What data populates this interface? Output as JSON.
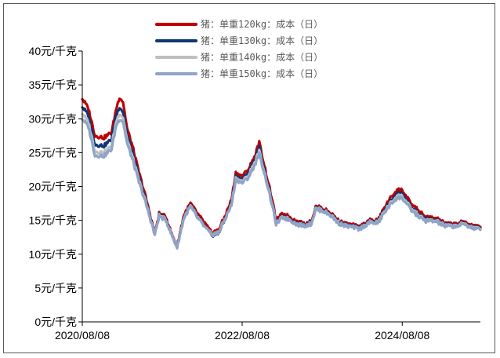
{
  "chart_data": {
    "type": "line",
    "title": "",
    "xlabel": "",
    "ylabel": "",
    "ylim": [
      0,
      40
    ],
    "x_range": [
      "2020-08-08",
      "2025-07-31"
    ],
    "y_ticks": [
      0,
      5,
      10,
      15,
      20,
      25,
      30,
      35,
      40
    ],
    "y_tick_labels": [
      "0元/千克",
      "5元/千克",
      "10元/千克",
      "15元/千克",
      "20元/千克",
      "25元/千克",
      "30元/千克",
      "35元/千克",
      "40元/千克"
    ],
    "x_ticks": [
      "2020-08-08",
      "2022-08-08",
      "2024-08-08"
    ],
    "x_tick_labels": [
      "2020/08/08",
      "2022/08/08",
      "2024/08/08"
    ],
    "grid": false,
    "legend_position": "top-center",
    "series": [
      {
        "name": "猪：单重120kg：成本（日）",
        "color": "#c00000",
        "points": [
          [
            "2020-08-08",
            33.0
          ],
          [
            "2020-09-05",
            31.5
          ],
          [
            "2020-10-05",
            27.5
          ],
          [
            "2020-11-15",
            27.2
          ],
          [
            "2020-12-20",
            28.0
          ],
          [
            "2021-01-10",
            31.5
          ],
          [
            "2021-01-25",
            33.2
          ],
          [
            "2021-02-10",
            32.5
          ],
          [
            "2021-03-01",
            28.5
          ],
          [
            "2021-03-25",
            26.0
          ],
          [
            "2021-04-20",
            22.5
          ],
          [
            "2021-05-20",
            19.0
          ],
          [
            "2021-06-20",
            15.0
          ],
          [
            "2021-07-05",
            13.0
          ],
          [
            "2021-07-25",
            16.0
          ],
          [
            "2021-08-25",
            15.5
          ],
          [
            "2021-09-20",
            13.0
          ],
          [
            "2021-10-15",
            11.2
          ],
          [
            "2021-11-15",
            15.8
          ],
          [
            "2021-12-15",
            17.5
          ],
          [
            "2022-01-15",
            16.0
          ],
          [
            "2022-02-20",
            14.5
          ],
          [
            "2022-03-20",
            13.2
          ],
          [
            "2022-04-20",
            13.5
          ],
          [
            "2022-05-20",
            15.5
          ],
          [
            "2022-06-20",
            18.0
          ],
          [
            "2022-07-10",
            22.0
          ],
          [
            "2022-08-08",
            21.5
          ],
          [
            "2022-09-05",
            22.5
          ],
          [
            "2022-10-05",
            24.5
          ],
          [
            "2022-10-25",
            26.5
          ],
          [
            "2022-11-25",
            22.0
          ],
          [
            "2022-12-20",
            18.5
          ],
          [
            "2023-01-10",
            15.0
          ],
          [
            "2023-02-10",
            16.0
          ],
          [
            "2023-03-15",
            15.5
          ],
          [
            "2023-04-15",
            14.8
          ],
          [
            "2023-05-20",
            14.5
          ],
          [
            "2023-06-20",
            14.8
          ],
          [
            "2023-07-10",
            17.0
          ],
          [
            "2023-08-10",
            16.8
          ],
          [
            "2023-09-20",
            16.0
          ],
          [
            "2023-10-20",
            15.0
          ],
          [
            "2023-11-20",
            14.5
          ],
          [
            "2023-12-25",
            14.3
          ],
          [
            "2024-01-25",
            14.0
          ],
          [
            "2024-03-10",
            15.0
          ],
          [
            "2024-04-20",
            15.0
          ],
          [
            "2024-05-20",
            17.0
          ],
          [
            "2024-06-20",
            18.5
          ],
          [
            "2024-07-15",
            19.5
          ],
          [
            "2024-08-08",
            19.5
          ],
          [
            "2024-09-15",
            17.5
          ],
          [
            "2024-10-20",
            16.5
          ],
          [
            "2024-11-20",
            15.5
          ],
          [
            "2025-01-10",
            15.3
          ],
          [
            "2025-02-20",
            14.5
          ],
          [
            "2025-04-10",
            14.5
          ],
          [
            "2025-05-20",
            14.8
          ],
          [
            "2025-06-20",
            14.3
          ],
          [
            "2025-07-31",
            14.0
          ]
        ]
      },
      {
        "name": "猪：单重130kg：成本（日）",
        "color": "#0f3674",
        "points": [
          [
            "2020-08-08",
            31.8
          ],
          [
            "2020-09-05",
            30.5
          ],
          [
            "2020-10-05",
            26.2
          ],
          [
            "2020-11-15",
            26.0
          ],
          [
            "2020-12-20",
            27.0
          ],
          [
            "2021-01-10",
            30.5
          ],
          [
            "2021-01-25",
            31.8
          ],
          [
            "2021-02-10",
            31.0
          ],
          [
            "2021-03-01",
            27.5
          ],
          [
            "2021-03-25",
            25.0
          ],
          [
            "2021-04-20",
            21.8
          ],
          [
            "2021-05-20",
            18.5
          ],
          [
            "2021-06-20",
            14.8
          ],
          [
            "2021-07-05",
            12.8
          ],
          [
            "2021-07-25",
            15.8
          ],
          [
            "2021-08-25",
            15.2
          ],
          [
            "2021-09-20",
            12.8
          ],
          [
            "2021-10-15",
            11.0
          ],
          [
            "2021-11-15",
            15.5
          ],
          [
            "2021-12-15",
            17.2
          ],
          [
            "2022-01-15",
            15.6
          ],
          [
            "2022-02-20",
            14.0
          ],
          [
            "2022-03-20",
            12.8
          ],
          [
            "2022-04-20",
            13.0
          ],
          [
            "2022-05-20",
            15.0
          ],
          [
            "2022-06-20",
            17.5
          ],
          [
            "2022-07-10",
            21.5
          ],
          [
            "2022-08-08",
            21.0
          ],
          [
            "2022-09-05",
            22.0
          ],
          [
            "2022-10-05",
            24.0
          ],
          [
            "2022-10-25",
            25.8
          ],
          [
            "2022-11-25",
            21.5
          ],
          [
            "2022-12-20",
            18.0
          ],
          [
            "2023-01-10",
            14.6
          ],
          [
            "2023-02-10",
            15.6
          ],
          [
            "2023-03-15",
            15.2
          ],
          [
            "2023-04-15",
            14.5
          ],
          [
            "2023-05-20",
            14.3
          ],
          [
            "2023-06-20",
            14.6
          ],
          [
            "2023-07-10",
            16.8
          ],
          [
            "2023-08-10",
            16.6
          ],
          [
            "2023-09-20",
            15.8
          ],
          [
            "2023-10-20",
            14.8
          ],
          [
            "2023-11-20",
            14.3
          ],
          [
            "2023-12-25",
            14.1
          ],
          [
            "2024-01-25",
            13.8
          ],
          [
            "2024-03-10",
            14.8
          ],
          [
            "2024-04-20",
            14.8
          ],
          [
            "2024-05-20",
            16.6
          ],
          [
            "2024-06-20",
            18.0
          ],
          [
            "2024-07-15",
            19.0
          ],
          [
            "2024-08-08",
            19.0
          ],
          [
            "2024-09-15",
            17.0
          ],
          [
            "2024-10-20",
            16.0
          ],
          [
            "2024-11-20",
            15.2
          ],
          [
            "2025-01-10",
            15.0
          ],
          [
            "2025-02-20",
            14.3
          ],
          [
            "2025-04-10",
            14.3
          ],
          [
            "2025-05-20",
            14.6
          ],
          [
            "2025-06-20",
            14.1
          ],
          [
            "2025-07-31",
            13.8
          ]
        ]
      },
      {
        "name": "猪：单重140kg：成本（日）",
        "color": "#bfbfbf",
        "points": [
          [
            "2020-08-08",
            30.8
          ],
          [
            "2020-09-05",
            29.5
          ],
          [
            "2020-10-05",
            25.2
          ],
          [
            "2020-11-15",
            25.0
          ],
          [
            "2020-12-20",
            26.0
          ],
          [
            "2021-01-10",
            29.6
          ],
          [
            "2021-01-25",
            30.8
          ],
          [
            "2021-02-10",
            30.2
          ],
          [
            "2021-03-01",
            26.8
          ],
          [
            "2021-03-25",
            24.4
          ],
          [
            "2021-04-20",
            21.3
          ],
          [
            "2021-05-20",
            18.2
          ],
          [
            "2021-06-20",
            14.7
          ],
          [
            "2021-07-05",
            12.8
          ],
          [
            "2021-07-25",
            15.7
          ],
          [
            "2021-08-25",
            15.1
          ],
          [
            "2021-09-20",
            12.8
          ],
          [
            "2021-10-15",
            11.0
          ],
          [
            "2021-11-15",
            15.4
          ],
          [
            "2021-12-15",
            17.1
          ],
          [
            "2022-01-15",
            15.5
          ],
          [
            "2022-02-20",
            13.9
          ],
          [
            "2022-03-20",
            12.9
          ],
          [
            "2022-04-20",
            13.1
          ],
          [
            "2022-05-20",
            15.1
          ],
          [
            "2022-06-20",
            17.3
          ],
          [
            "2022-07-10",
            21.2
          ],
          [
            "2022-08-08",
            20.7
          ],
          [
            "2022-09-05",
            21.6
          ],
          [
            "2022-10-05",
            23.6
          ],
          [
            "2022-10-25",
            25.2
          ],
          [
            "2022-11-25",
            21.2
          ],
          [
            "2022-12-20",
            17.8
          ],
          [
            "2023-01-10",
            14.5
          ],
          [
            "2023-02-10",
            15.5
          ],
          [
            "2023-03-15",
            15.1
          ],
          [
            "2023-04-15",
            14.4
          ],
          [
            "2023-05-20",
            14.2
          ],
          [
            "2023-06-20",
            14.5
          ],
          [
            "2023-07-10",
            16.7
          ],
          [
            "2023-08-10",
            16.5
          ],
          [
            "2023-09-20",
            15.7
          ],
          [
            "2023-10-20",
            14.7
          ],
          [
            "2023-11-20",
            14.2
          ],
          [
            "2023-12-25",
            14.0
          ],
          [
            "2024-01-25",
            13.7
          ],
          [
            "2024-03-10",
            14.7
          ],
          [
            "2024-04-20",
            14.7
          ],
          [
            "2024-05-20",
            16.4
          ],
          [
            "2024-06-20",
            17.7
          ],
          [
            "2024-07-15",
            18.6
          ],
          [
            "2024-08-08",
            18.6
          ],
          [
            "2024-09-15",
            16.8
          ],
          [
            "2024-10-20",
            15.8
          ],
          [
            "2024-11-20",
            15.0
          ],
          [
            "2025-01-10",
            14.9
          ],
          [
            "2025-02-20",
            14.2
          ],
          [
            "2025-04-10",
            14.2
          ],
          [
            "2025-05-20",
            14.5
          ],
          [
            "2025-06-20",
            14.0
          ],
          [
            "2025-07-31",
            13.7
          ]
        ]
      },
      {
        "name": "猪：单重150kg：成本（日）",
        "color": "#8ea4c8",
        "points": [
          [
            "2020-08-08",
            30.0
          ],
          [
            "2020-09-05",
            28.8
          ],
          [
            "2020-10-05",
            24.6
          ],
          [
            "2020-11-15",
            24.5
          ],
          [
            "2020-12-20",
            25.5
          ],
          [
            "2021-01-10",
            29.0
          ],
          [
            "2021-01-25",
            30.0
          ],
          [
            "2021-02-10",
            29.6
          ],
          [
            "2021-03-01",
            26.3
          ],
          [
            "2021-03-25",
            24.0
          ],
          [
            "2021-04-20",
            21.0
          ],
          [
            "2021-05-20",
            18.0
          ],
          [
            "2021-06-20",
            14.6
          ],
          [
            "2021-07-05",
            12.9
          ],
          [
            "2021-07-25",
            15.6
          ],
          [
            "2021-08-25",
            15.0
          ],
          [
            "2021-09-20",
            12.9
          ],
          [
            "2021-10-15",
            11.1
          ],
          [
            "2021-11-15",
            15.3
          ],
          [
            "2021-12-15",
            17.0
          ],
          [
            "2022-01-15",
            15.4
          ],
          [
            "2022-02-20",
            13.9
          ],
          [
            "2022-03-20",
            13.0
          ],
          [
            "2022-04-20",
            13.2
          ],
          [
            "2022-05-20",
            15.1
          ],
          [
            "2022-06-20",
            17.2
          ],
          [
            "2022-07-10",
            21.0
          ],
          [
            "2022-08-08",
            20.5
          ],
          [
            "2022-09-05",
            21.3
          ],
          [
            "2022-10-05",
            23.2
          ],
          [
            "2022-10-25",
            24.8
          ],
          [
            "2022-11-25",
            21.0
          ],
          [
            "2022-12-20",
            17.6
          ],
          [
            "2023-01-10",
            14.5
          ],
          [
            "2023-02-10",
            15.4
          ],
          [
            "2023-03-15",
            15.0
          ],
          [
            "2023-04-15",
            14.4
          ],
          [
            "2023-05-20",
            14.2
          ],
          [
            "2023-06-20",
            14.5
          ],
          [
            "2023-07-10",
            16.6
          ],
          [
            "2023-08-10",
            16.4
          ],
          [
            "2023-09-20",
            15.6
          ],
          [
            "2023-10-20",
            14.6
          ],
          [
            "2023-11-20",
            14.2
          ],
          [
            "2023-12-25",
            14.0
          ],
          [
            "2024-01-25",
            13.7
          ],
          [
            "2024-03-10",
            14.6
          ],
          [
            "2024-04-20",
            14.6
          ],
          [
            "2024-05-20",
            16.2
          ],
          [
            "2024-06-20",
            17.5
          ],
          [
            "2024-07-15",
            18.3
          ],
          [
            "2024-08-08",
            18.3
          ],
          [
            "2024-09-15",
            16.6
          ],
          [
            "2024-10-20",
            15.6
          ],
          [
            "2024-11-20",
            14.9
          ],
          [
            "2025-01-10",
            14.8
          ],
          [
            "2025-02-20",
            14.1
          ],
          [
            "2025-04-10",
            14.1
          ],
          [
            "2025-05-20",
            14.4
          ],
          [
            "2025-06-20",
            13.9
          ],
          [
            "2025-07-31",
            13.6
          ]
        ]
      }
    ]
  }
}
